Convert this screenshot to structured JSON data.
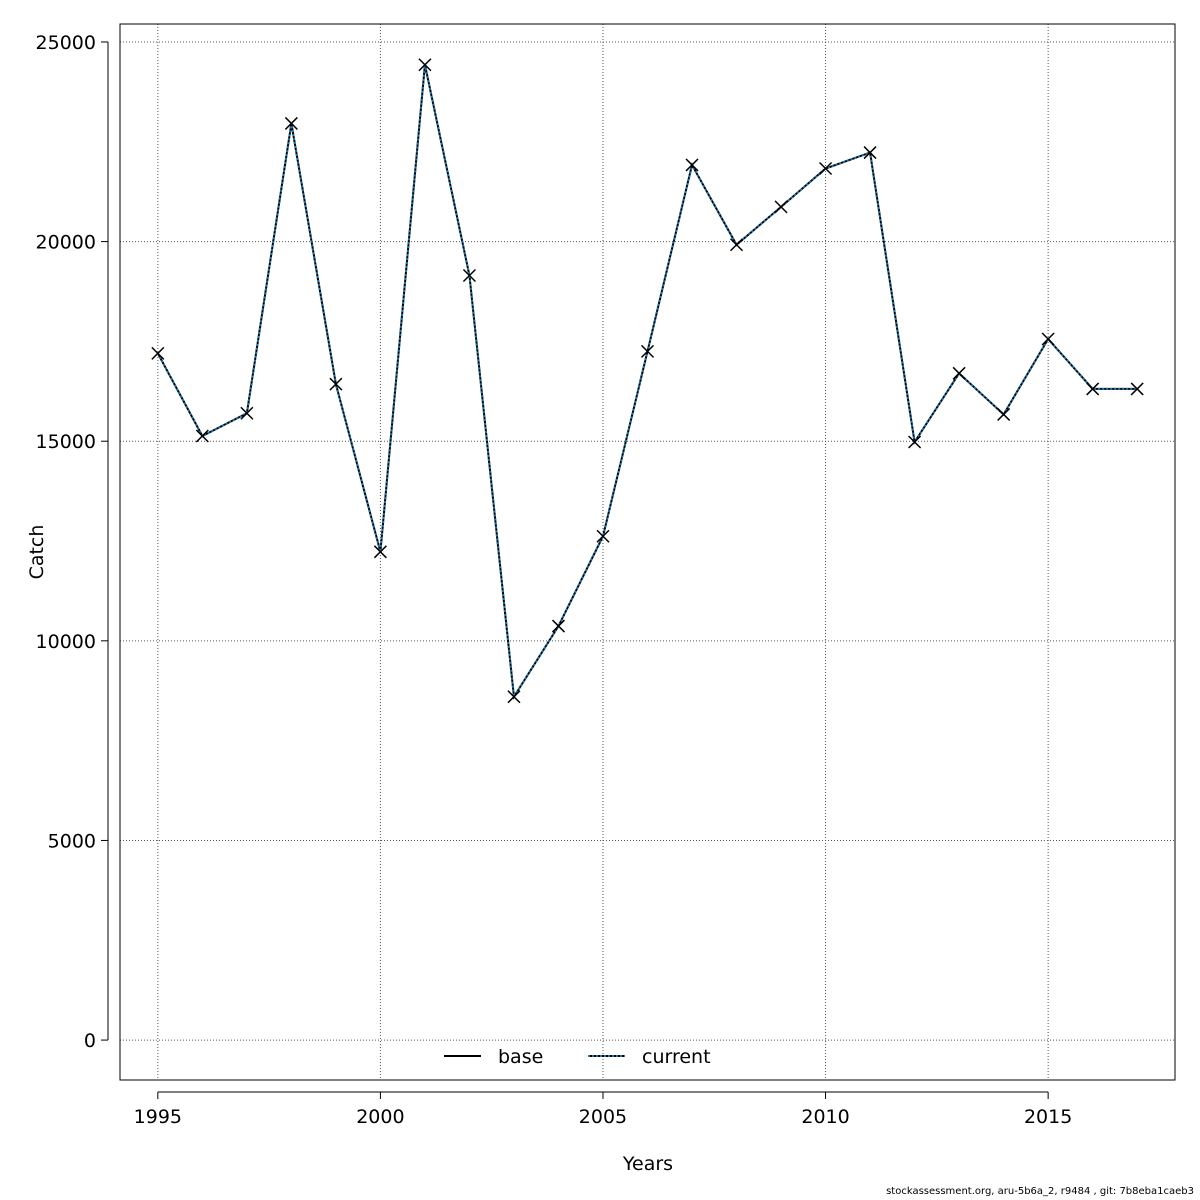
{
  "chart_data": {
    "type": "line",
    "xlabel": "Years",
    "ylabel": "Catch",
    "xlim": [
      1994.15,
      2017.85
    ],
    "ylim": [
      -1000,
      25450
    ],
    "xticks": [
      1995,
      2000,
      2005,
      2010,
      2015
    ],
    "yticks": [
      0,
      5000,
      10000,
      15000,
      20000,
      25000
    ],
    "grid": true,
    "legend_placement": "bottom-center",
    "x": [
      1995,
      1996,
      1997,
      1998,
      1999,
      2000,
      2001,
      2002,
      2003,
      2004,
      2005,
      2006,
      2007,
      2008,
      2009,
      2010,
      2011,
      2012,
      2013,
      2014,
      2015,
      2016,
      2017
    ],
    "series": [
      {
        "name": "base",
        "color": "#000000",
        "line_style": "solid",
        "values": [
          17200,
          15130,
          15700,
          22960,
          16430,
          12230,
          24430,
          19150,
          8600,
          10370,
          12620,
          17250,
          21920,
          19920,
          20870,
          21830,
          22230,
          14980,
          16700,
          15670,
          17560,
          16310,
          16310
        ]
      },
      {
        "name": "current",
        "color": "#1f78b4",
        "line_style": "dotted",
        "values": [
          17200,
          15130,
          15700,
          22960,
          16430,
          12230,
          24430,
          19150,
          8600,
          10370,
          12620,
          17250,
          21920,
          19920,
          20870,
          21830,
          22230,
          14980,
          16700,
          15670,
          17560,
          16310,
          16310
        ]
      }
    ],
    "marker": "x"
  },
  "footer": "stockassessment.org, aru-5b6a_2, r9484 , git: 7b8eba1caeb3"
}
